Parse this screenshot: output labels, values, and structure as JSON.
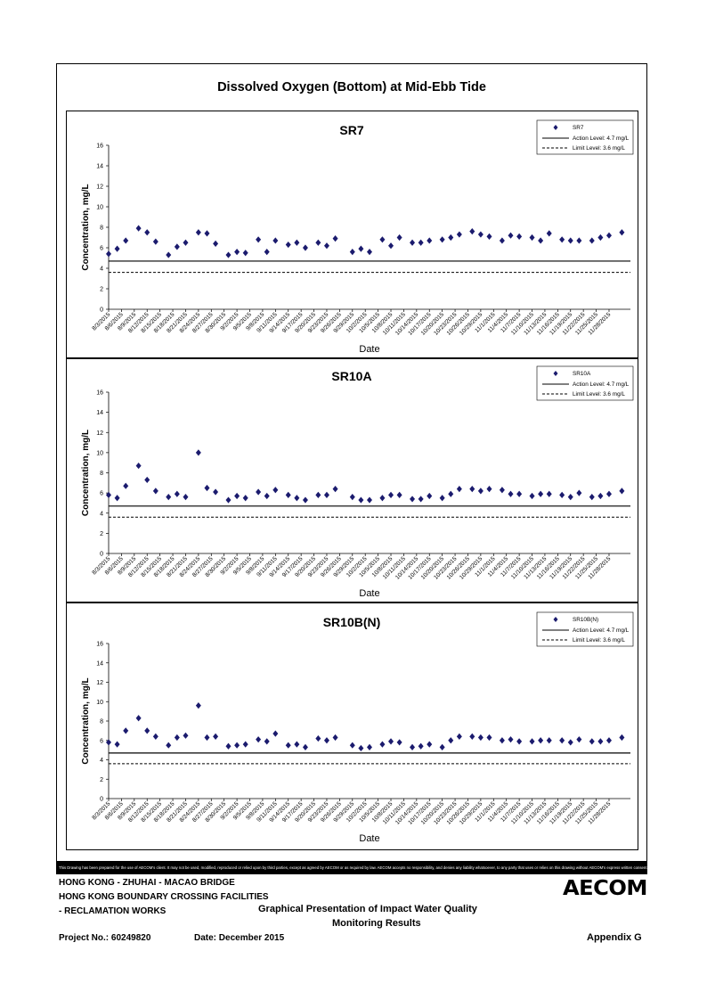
{
  "page": {
    "main_title": "Dissolved Oxygen (Bottom) at Mid-Ebb Tide",
    "disclaimer": "This Drawing has been prepared for the use of AECOM's client. It may not be used, modified, reproduced or relied upon by third parties, except as agreed by AECOM or as required by law. AECOM accepts no responsibility, and denies any liability whatsoever, to any party that uses or relies on this drawing without AECOM's express written consent.",
    "footer": {
      "line1": "HONG KONG - ZHUHAI - MACAO BRIDGE",
      "line2": "HONG KONG BOUNDARY CROSSING FACILITIES",
      "line3": "- RECLAMATION WORKS",
      "title_line1": "Graphical Presentation of Impact Water Quality",
      "title_line2": "Monitoring Results",
      "project": "Project No.: 60249820",
      "date": "Date: December 2015",
      "appendix": "Appendix G",
      "logo": "AECOM"
    }
  },
  "chart_data": [
    {
      "type": "scatter",
      "title": "SR7",
      "xlabel": "Date",
      "ylabel": "Concentration, mg/L",
      "ylim": [
        0,
        16
      ],
      "yticks": [
        0,
        2,
        4,
        6,
        8,
        10,
        12,
        14,
        16
      ],
      "x_tick_labels": [
        "8/3/2015",
        "8/6/2015",
        "8/9/2015",
        "8/12/2015",
        "8/15/2015",
        "8/18/2015",
        "8/21/2015",
        "8/24/2015",
        "8/27/2015",
        "8/30/2015",
        "9/2/2015",
        "9/5/2015",
        "9/8/2015",
        "9/11/2015",
        "9/14/2015",
        "9/17/2015",
        "9/20/2015",
        "9/23/2015",
        "9/26/2015",
        "9/29/2015",
        "10/2/2015",
        "10/5/2015",
        "10/8/2015",
        "10/11/2015",
        "10/14/2015",
        "10/17/2015",
        "10/20/2015",
        "10/23/2015",
        "10/26/2015",
        "10/29/2015",
        "11/1/2015",
        "11/4/2015",
        "11/7/2015",
        "11/10/2015",
        "11/13/2015",
        "11/16/2015",
        "11/19/2015",
        "11/22/2015",
        "11/25/2015",
        "11/28/2015"
      ],
      "legend": [
        "SR7",
        "Action Level: 4.7 mg/L",
        "Limit Level: 3.6 mg/L"
      ],
      "legend_position": "top-right",
      "action_level": 4.7,
      "limit_level": 3.6,
      "series": [
        {
          "name": "SR7",
          "points": [
            [
              "2015-08-03",
              5.4
            ],
            [
              "2015-08-05",
              5.9
            ],
            [
              "2015-08-07",
              6.7
            ],
            [
              "2015-08-10",
              7.9
            ],
            [
              "2015-08-12",
              7.5
            ],
            [
              "2015-08-14",
              6.6
            ],
            [
              "2015-08-17",
              5.3
            ],
            [
              "2015-08-19",
              6.1
            ],
            [
              "2015-08-21",
              6.5
            ],
            [
              "2015-08-24",
              7.5
            ],
            [
              "2015-08-26",
              7.4
            ],
            [
              "2015-08-28",
              6.4
            ],
            [
              "2015-08-31",
              5.3
            ],
            [
              "2015-09-02",
              5.6
            ],
            [
              "2015-09-04",
              5.5
            ],
            [
              "2015-09-07",
              6.8
            ],
            [
              "2015-09-09",
              5.6
            ],
            [
              "2015-09-11",
              6.7
            ],
            [
              "2015-09-14",
              6.3
            ],
            [
              "2015-09-16",
              6.5
            ],
            [
              "2015-09-18",
              6.0
            ],
            [
              "2015-09-21",
              6.5
            ],
            [
              "2015-09-23",
              6.2
            ],
            [
              "2015-09-25",
              6.9
            ],
            [
              "2015-09-29",
              5.6
            ],
            [
              "2015-10-01",
              5.9
            ],
            [
              "2015-10-03",
              5.6
            ],
            [
              "2015-10-06",
              6.8
            ],
            [
              "2015-10-08",
              6.2
            ],
            [
              "2015-10-10",
              7.0
            ],
            [
              "2015-10-13",
              6.5
            ],
            [
              "2015-10-15",
              6.5
            ],
            [
              "2015-10-17",
              6.7
            ],
            [
              "2015-10-20",
              6.8
            ],
            [
              "2015-10-22",
              7.0
            ],
            [
              "2015-10-24",
              7.3
            ],
            [
              "2015-10-27",
              7.6
            ],
            [
              "2015-10-29",
              7.3
            ],
            [
              "2015-10-31",
              7.1
            ],
            [
              "2015-11-03",
              6.7
            ],
            [
              "2015-11-05",
              7.2
            ],
            [
              "2015-11-07",
              7.1
            ],
            [
              "2015-11-10",
              7.0
            ],
            [
              "2015-11-12",
              6.7
            ],
            [
              "2015-11-14",
              7.4
            ],
            [
              "2015-11-17",
              6.8
            ],
            [
              "2015-11-19",
              6.7
            ],
            [
              "2015-11-21",
              6.7
            ],
            [
              "2015-11-24",
              6.7
            ],
            [
              "2015-11-26",
              7.0
            ],
            [
              "2015-11-28",
              7.2
            ],
            [
              "2015-12-01",
              7.5
            ]
          ]
        }
      ]
    },
    {
      "type": "scatter",
      "title": "SR10A",
      "xlabel": "Date",
      "ylabel": "Concentration, mg/L",
      "ylim": [
        0,
        16
      ],
      "yticks": [
        0,
        2,
        4,
        6,
        8,
        10,
        12,
        14,
        16
      ],
      "x_tick_labels": [
        "8/3/2015",
        "8/6/2015",
        "8/9/2015",
        "8/12/2015",
        "8/15/2015",
        "8/18/2015",
        "8/21/2015",
        "8/24/2015",
        "8/27/2015",
        "8/30/2015",
        "9/2/2015",
        "9/5/2015",
        "9/8/2015",
        "9/11/2015",
        "9/14/2015",
        "9/17/2015",
        "9/20/2015",
        "9/23/2015",
        "9/26/2015",
        "9/29/2015",
        "10/2/2015",
        "10/5/2015",
        "10/8/2015",
        "10/11/2015",
        "10/14/2015",
        "10/17/2015",
        "10/20/2015",
        "10/23/2015",
        "10/26/2015",
        "10/29/2015",
        "11/1/2015",
        "11/4/2015",
        "11/7/2015",
        "11/10/2015",
        "11/13/2015",
        "11/16/2015",
        "11/19/2015",
        "11/22/2015",
        "11/25/2015",
        "11/28/2015"
      ],
      "legend": [
        "SR10A",
        "Action Level: 4.7 mg/L",
        "Limit Level: 3.6 mg/L"
      ],
      "legend_position": "top-right",
      "action_level": 4.7,
      "limit_level": 3.6,
      "series": [
        {
          "name": "SR10A",
          "points": [
            [
              "2015-08-03",
              5.8
            ],
            [
              "2015-08-05",
              5.5
            ],
            [
              "2015-08-07",
              6.7
            ],
            [
              "2015-08-10",
              8.7
            ],
            [
              "2015-08-12",
              7.3
            ],
            [
              "2015-08-14",
              6.2
            ],
            [
              "2015-08-17",
              5.6
            ],
            [
              "2015-08-19",
              5.9
            ],
            [
              "2015-08-21",
              5.6
            ],
            [
              "2015-08-24",
              10.0
            ],
            [
              "2015-08-26",
              6.5
            ],
            [
              "2015-08-28",
              6.1
            ],
            [
              "2015-08-31",
              5.3
            ],
            [
              "2015-09-02",
              5.7
            ],
            [
              "2015-09-04",
              5.5
            ],
            [
              "2015-09-07",
              6.1
            ],
            [
              "2015-09-09",
              5.7
            ],
            [
              "2015-09-11",
              6.3
            ],
            [
              "2015-09-14",
              5.8
            ],
            [
              "2015-09-16",
              5.5
            ],
            [
              "2015-09-18",
              5.3
            ],
            [
              "2015-09-21",
              5.8
            ],
            [
              "2015-09-23",
              5.8
            ],
            [
              "2015-09-25",
              6.4
            ],
            [
              "2015-09-29",
              5.6
            ],
            [
              "2015-10-01",
              5.3
            ],
            [
              "2015-10-03",
              5.3
            ],
            [
              "2015-10-06",
              5.5
            ],
            [
              "2015-10-08",
              5.8
            ],
            [
              "2015-10-10",
              5.8
            ],
            [
              "2015-10-13",
              5.4
            ],
            [
              "2015-10-15",
              5.4
            ],
            [
              "2015-10-17",
              5.7
            ],
            [
              "2015-10-20",
              5.5
            ],
            [
              "2015-10-22",
              5.9
            ],
            [
              "2015-10-24",
              6.4
            ],
            [
              "2015-10-27",
              6.4
            ],
            [
              "2015-10-29",
              6.2
            ],
            [
              "2015-10-31",
              6.4
            ],
            [
              "2015-11-03",
              6.3
            ],
            [
              "2015-11-05",
              5.9
            ],
            [
              "2015-11-07",
              5.9
            ],
            [
              "2015-11-10",
              5.7
            ],
            [
              "2015-11-12",
              5.9
            ],
            [
              "2015-11-14",
              5.9
            ],
            [
              "2015-11-17",
              5.8
            ],
            [
              "2015-11-19",
              5.6
            ],
            [
              "2015-11-21",
              6.0
            ],
            [
              "2015-11-24",
              5.6
            ],
            [
              "2015-11-26",
              5.7
            ],
            [
              "2015-11-28",
              5.9
            ],
            [
              "2015-12-01",
              6.2
            ]
          ]
        }
      ]
    },
    {
      "type": "scatter",
      "title": "SR10B(N)",
      "xlabel": "Date",
      "ylabel": "Concentration, mg/L",
      "ylim": [
        0,
        16
      ],
      "yticks": [
        0,
        2,
        4,
        6,
        8,
        10,
        12,
        14,
        16
      ],
      "x_tick_labels": [
        "8/3/2015",
        "8/6/2015",
        "8/9/2015",
        "8/12/2015",
        "8/15/2015",
        "8/18/2015",
        "8/21/2015",
        "8/24/2015",
        "8/27/2015",
        "8/30/2015",
        "9/2/2015",
        "9/5/2015",
        "9/8/2015",
        "9/11/2015",
        "9/14/2015",
        "9/17/2015",
        "9/20/2015",
        "9/23/2015",
        "9/26/2015",
        "9/29/2015",
        "10/2/2015",
        "10/5/2015",
        "10/8/2015",
        "10/11/2015",
        "10/14/2015",
        "10/17/2015",
        "10/20/2015",
        "10/23/2015",
        "10/26/2015",
        "10/29/2015",
        "11/1/2015",
        "11/4/2015",
        "11/7/2015",
        "11/10/2015",
        "11/13/2015",
        "11/16/2015",
        "11/19/2015",
        "11/22/2015",
        "11/25/2015",
        "11/28/2015"
      ],
      "legend": [
        "SR10B(N)",
        "Action Level: 4.7 mg/L",
        "Limit Level: 3.6 mg/L"
      ],
      "legend_position": "top-right",
      "action_level": 4.7,
      "limit_level": 3.6,
      "series": [
        {
          "name": "SR10B(N)",
          "points": [
            [
              "2015-08-03",
              5.8
            ],
            [
              "2015-08-05",
              5.6
            ],
            [
              "2015-08-07",
              7.0
            ],
            [
              "2015-08-10",
              8.3
            ],
            [
              "2015-08-12",
              7.0
            ],
            [
              "2015-08-14",
              6.4
            ],
            [
              "2015-08-17",
              5.5
            ],
            [
              "2015-08-19",
              6.3
            ],
            [
              "2015-08-21",
              6.5
            ],
            [
              "2015-08-24",
              9.6
            ],
            [
              "2015-08-26",
              6.3
            ],
            [
              "2015-08-28",
              6.4
            ],
            [
              "2015-08-31",
              5.4
            ],
            [
              "2015-09-02",
              5.5
            ],
            [
              "2015-09-04",
              5.6
            ],
            [
              "2015-09-07",
              6.1
            ],
            [
              "2015-09-09",
              5.9
            ],
            [
              "2015-09-11",
              6.7
            ],
            [
              "2015-09-14",
              5.5
            ],
            [
              "2015-09-16",
              5.6
            ],
            [
              "2015-09-18",
              5.3
            ],
            [
              "2015-09-21",
              6.2
            ],
            [
              "2015-09-23",
              6.0
            ],
            [
              "2015-09-25",
              6.3
            ],
            [
              "2015-09-29",
              5.5
            ],
            [
              "2015-10-01",
              5.2
            ],
            [
              "2015-10-03",
              5.3
            ],
            [
              "2015-10-06",
              5.6
            ],
            [
              "2015-10-08",
              5.9
            ],
            [
              "2015-10-10",
              5.8
            ],
            [
              "2015-10-13",
              5.3
            ],
            [
              "2015-10-15",
              5.4
            ],
            [
              "2015-10-17",
              5.6
            ],
            [
              "2015-10-20",
              5.3
            ],
            [
              "2015-10-22",
              6.0
            ],
            [
              "2015-10-24",
              6.4
            ],
            [
              "2015-10-27",
              6.4
            ],
            [
              "2015-10-29",
              6.3
            ],
            [
              "2015-10-31",
              6.3
            ],
            [
              "2015-11-03",
              6.0
            ],
            [
              "2015-11-05",
              6.1
            ],
            [
              "2015-11-07",
              5.9
            ],
            [
              "2015-11-10",
              5.9
            ],
            [
              "2015-11-12",
              6.0
            ],
            [
              "2015-11-14",
              6.0
            ],
            [
              "2015-11-17",
              6.0
            ],
            [
              "2015-11-19",
              5.8
            ],
            [
              "2015-11-21",
              6.1
            ],
            [
              "2015-11-24",
              5.9
            ],
            [
              "2015-11-26",
              5.9
            ],
            [
              "2015-11-28",
              6.0
            ],
            [
              "2015-12-01",
              6.3
            ]
          ]
        }
      ]
    }
  ]
}
